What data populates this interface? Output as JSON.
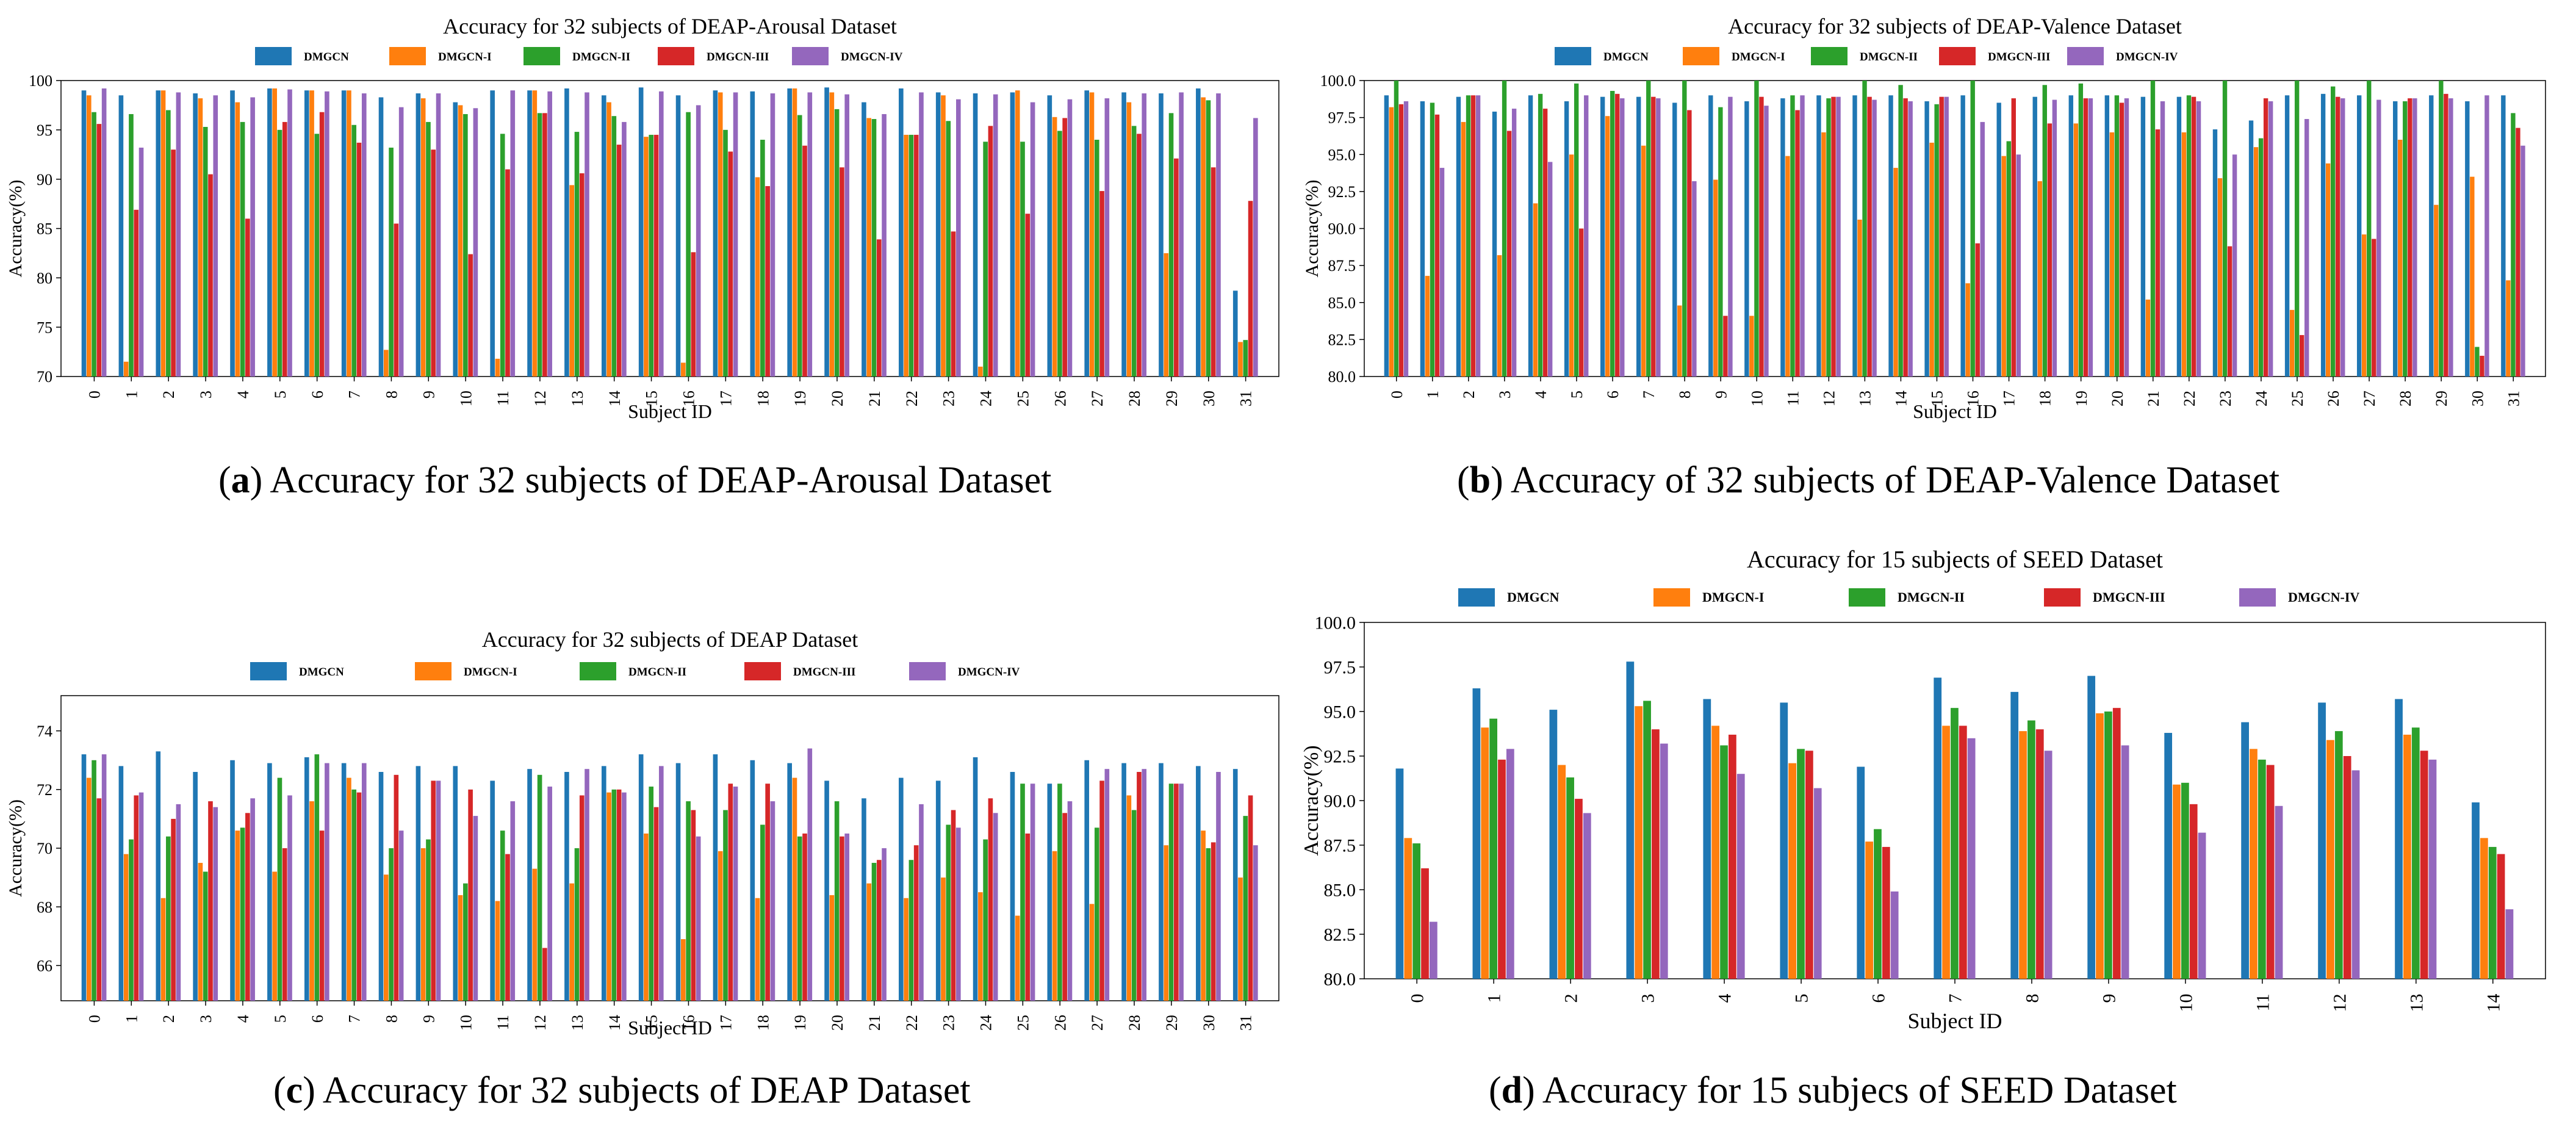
{
  "colors": {
    "DMGCN": "#1f77b4",
    "DMGCN-I": "#ff7f0e",
    "DMGCN-II": "#2ca02c",
    "DMGCN-III": "#d62728",
    "DMGCN-IV": "#9467bd"
  },
  "captions": [
    {
      "label": "a",
      "text": "Accuracy for 32 subjects of DEAP-Arousal Dataset"
    },
    {
      "label": "b",
      "text": "Accuracy of 32 subjects of DEAP-Valence Dataset"
    },
    {
      "label": "c",
      "text": "Accuracy for 32 subjects of DEAP Dataset"
    },
    {
      "label": "d",
      "text": "Accuracy for 15 subjecs of SEED Dataset"
    }
  ],
  "chart_data": [
    {
      "type": "bar",
      "title": "Accuracy for 32 subjects of DEAP-Arousal Dataset",
      "xlabel": "Subject ID",
      "ylabel": "Accuracy(%)",
      "ylim": [
        70,
        100
      ],
      "yticks": [
        70,
        75,
        80,
        85,
        90,
        95,
        100
      ],
      "ytick_labels": [
        "70",
        "75",
        "80",
        "85",
        "90",
        "95",
        "100"
      ],
      "categories": [
        "0",
        "1",
        "2",
        "3",
        "4",
        "5",
        "6",
        "7",
        "8",
        "9",
        "10",
        "11",
        "12",
        "13",
        "14",
        "15",
        "16",
        "17",
        "18",
        "19",
        "20",
        "21",
        "22",
        "23",
        "24",
        "25",
        "26",
        "27",
        "28",
        "29",
        "30",
        "31"
      ],
      "series": [
        {
          "name": "DMGCN",
          "values": [
            99,
            98.5,
            99,
            98.7,
            99,
            99.2,
            99,
            99,
            98.3,
            98.7,
            97.8,
            99,
            99,
            99.2,
            98.5,
            99.3,
            98.5,
            99,
            98.9,
            99.2,
            99.3,
            97.8,
            99.2,
            98.8,
            98.7,
            98.8,
            98.5,
            99,
            98.8,
            98.7,
            99.2,
            78.7
          ]
        },
        {
          "name": "DMGCN-I",
          "values": [
            98.5,
            71.5,
            99,
            98.2,
            97.8,
            99.2,
            99,
            99,
            72.7,
            98.2,
            97.5,
            71.8,
            99,
            89.4,
            97.8,
            94.3,
            71.4,
            98.8,
            90.2,
            99.2,
            98.8,
            96.2,
            94.5,
            98.5,
            71,
            99,
            96.3,
            98.8,
            97.8,
            82.5,
            98.3,
            73.5
          ]
        },
        {
          "name": "DMGCN-II",
          "values": [
            96.8,
            96.6,
            97,
            95.3,
            95.8,
            95,
            94.6,
            95.5,
            93.2,
            95.8,
            96.6,
            94.6,
            96.7,
            94.8,
            96.4,
            94.5,
            96.8,
            95,
            94,
            96.5,
            97.1,
            96.1,
            94.5,
            95.9,
            93.8,
            93.8,
            94.9,
            94,
            95.4,
            96.7,
            98,
            73.7
          ]
        },
        {
          "name": "DMGCN-III",
          "values": [
            95.6,
            86.9,
            93,
            90.5,
            86,
            95.8,
            96.8,
            93.7,
            85.5,
            93,
            82.4,
            91,
            96.7,
            90.6,
            93.5,
            94.5,
            82.6,
            92.8,
            89.3,
            93.4,
            91.2,
            83.9,
            94.5,
            84.7,
            95.4,
            86.5,
            96.2,
            88.8,
            94.6,
            92.1,
            91.2,
            87.8
          ]
        },
        {
          "name": "DMGCN-IV",
          "values": [
            99.2,
            93.2,
            98.8,
            98.5,
            98.3,
            99.1,
            98.9,
            98.7,
            97.3,
            98.7,
            97.2,
            99,
            98.9,
            98.8,
            95.8,
            98.9,
            97.5,
            98.8,
            98.7,
            98.8,
            98.6,
            96.6,
            98.8,
            98.1,
            98.6,
            97.8,
            98.1,
            98.2,
            98.7,
            98.8,
            98.7,
            96.2
          ]
        }
      ]
    },
    {
      "type": "bar",
      "title": "Accuracy for 32 subjects of DEAP-Valence Dataset",
      "xlabel": "Subject ID",
      "ylabel": "Accuracy(%)",
      "ylim": [
        80,
        100
      ],
      "yticks": [
        80,
        82.5,
        85,
        87.5,
        90,
        92.5,
        95,
        97.5,
        100
      ],
      "ytick_labels": [
        "80.0",
        "82.5",
        "85.0",
        "87.5",
        "90.0",
        "92.5",
        "95.0",
        "97.5",
        "100.0"
      ],
      "categories": [
        "0",
        "1",
        "2",
        "3",
        "4",
        "5",
        "6",
        "7",
        "8",
        "9",
        "10",
        "11",
        "12",
        "13",
        "14",
        "15",
        "16",
        "17",
        "18",
        "19",
        "20",
        "21",
        "22",
        "23",
        "24",
        "25",
        "26",
        "27",
        "28",
        "29",
        "30",
        "31"
      ],
      "series": [
        {
          "name": "DMGCN",
          "values": [
            99,
            98.6,
            98.9,
            97.9,
            99,
            98.6,
            98.9,
            98.9,
            98.5,
            99,
            98.6,
            98.8,
            99,
            99,
            99,
            98.6,
            99,
            98.5,
            98.9,
            99,
            99,
            98.9,
            98.9,
            96.7,
            97.3,
            99,
            99.1,
            99,
            98.6,
            99,
            98.6,
            99
          ]
        },
        {
          "name": "DMGCN-I",
          "values": [
            98.2,
            86.8,
            97.2,
            88.2,
            91.7,
            95,
            97.6,
            95.6,
            84.8,
            93.3,
            84.1,
            94.9,
            96.5,
            90.6,
            94.1,
            95.8,
            86.3,
            94.9,
            93.2,
            97.1,
            96.5,
            85.2,
            96.5,
            93.4,
            95.5,
            84.5,
            94.4,
            89.6,
            96,
            91.6,
            93.5,
            86.5
          ]
        },
        {
          "name": "DMGCN-II",
          "values": [
            100,
            98.5,
            99,
            100,
            99.1,
            99.8,
            99.3,
            100,
            100,
            98.2,
            100,
            99,
            98.8,
            100,
            99.7,
            98.4,
            100,
            95.9,
            99.7,
            99.8,
            99,
            100,
            99,
            100,
            96.1,
            100,
            99.6,
            100,
            98.6,
            100,
            82,
            97.8
          ]
        },
        {
          "name": "DMGCN-III",
          "values": [
            98.4,
            97.7,
            99,
            96.6,
            98.1,
            90,
            99.1,
            98.9,
            98,
            84.1,
            98.9,
            98,
            98.9,
            98.9,
            98.8,
            98.9,
            89,
            98.8,
            97.1,
            98.8,
            98.5,
            96.7,
            98.9,
            88.8,
            98.8,
            82.8,
            98.9,
            89.3,
            98.8,
            99.1,
            81.4,
            96.8
          ]
        },
        {
          "name": "DMGCN-IV",
          "values": [
            98.6,
            94.1,
            99,
            98.1,
            94.5,
            99,
            98.8,
            98.8,
            93.2,
            98.9,
            98.3,
            99,
            98.9,
            98.7,
            98.6,
            98.9,
            97.2,
            95,
            98.7,
            98.8,
            98.8,
            98.6,
            98.6,
            95,
            98.6,
            97.4,
            98.8,
            98.7,
            98.8,
            98.8,
            99,
            95.6
          ]
        }
      ]
    },
    {
      "type": "bar",
      "title": "Accuracy for 32 subjects of DEAP Dataset",
      "xlabel": "Subject ID",
      "ylabel": "Accuracy(%)",
      "ylim": [
        64.8,
        75.2
      ],
      "yticks": [
        66,
        68,
        70,
        72,
        74
      ],
      "ytick_labels": [
        "66",
        "68",
        "70",
        "72",
        "74"
      ],
      "categories": [
        "0",
        "1",
        "2",
        "3",
        "4",
        "5",
        "6",
        "7",
        "8",
        "9",
        "10",
        "11",
        "12",
        "13",
        "14",
        "15",
        "16",
        "17",
        "18",
        "19",
        "20",
        "21",
        "22",
        "23",
        "24",
        "25",
        "26",
        "27",
        "28",
        "29",
        "30",
        "31"
      ],
      "series": [
        {
          "name": "DMGCN",
          "values": [
            73.2,
            72.8,
            73.3,
            72.6,
            73,
            72.9,
            73.1,
            72.9,
            72.6,
            72.8,
            72.8,
            72.3,
            72.7,
            72.6,
            72.8,
            73.2,
            72.9,
            73.2,
            73,
            72.9,
            72.3,
            71.7,
            72.4,
            72.3,
            73.1,
            72.6,
            72.2,
            73,
            72.9,
            72.9,
            72.8,
            72.7
          ]
        },
        {
          "name": "DMGCN-I",
          "values": [
            72.4,
            69.8,
            68.3,
            69.5,
            70.6,
            69.2,
            71.6,
            72.4,
            69.1,
            70,
            68.4,
            68.2,
            69.3,
            68.8,
            71.9,
            70.5,
            66.9,
            69.9,
            68.3,
            72.4,
            68.4,
            68.8,
            68.3,
            69,
            68.5,
            67.7,
            69.9,
            68.1,
            71.8,
            70.1,
            70.6,
            69
          ]
        },
        {
          "name": "DMGCN-II",
          "values": [
            73,
            70.3,
            70.4,
            69.2,
            70.7,
            72.4,
            73.2,
            72,
            70,
            70.3,
            68.8,
            70.6,
            72.5,
            70,
            72,
            72.1,
            71.6,
            71.3,
            70.8,
            70.4,
            71.6,
            69.5,
            69.6,
            70.8,
            70.3,
            72.2,
            72.2,
            70.7,
            71.3,
            72.2,
            70,
            71.1
          ]
        },
        {
          "name": "DMGCN-III",
          "values": [
            71.7,
            71.8,
            71,
            71.6,
            71.2,
            70,
            70.6,
            71.9,
            72.5,
            72.3,
            72,
            69.8,
            66.6,
            71.8,
            72,
            71.4,
            71.3,
            72.2,
            72.2,
            70.5,
            70.4,
            69.6,
            70.1,
            71.3,
            71.7,
            70.5,
            71.2,
            72.3,
            72.6,
            72.2,
            70.2,
            71.8
          ]
        },
        {
          "name": "DMGCN-IV",
          "values": [
            73.2,
            71.9,
            71.5,
            71.4,
            71.7,
            71.8,
            72.9,
            72.9,
            70.6,
            72.3,
            71.1,
            71.6,
            72.1,
            72.7,
            71.9,
            72.8,
            70.4,
            72.1,
            71.6,
            73.4,
            70.5,
            70,
            71.5,
            70.7,
            71.2,
            72.2,
            71.6,
            72.7,
            72.7,
            72.2,
            72.6,
            70.1
          ]
        }
      ]
    },
    {
      "type": "bar",
      "title": "Accuracy for 15 subjects of SEED Dataset",
      "xlabel": "Subject ID",
      "ylabel": "Accuracy(%)",
      "ylim": [
        80,
        100
      ],
      "yticks": [
        80,
        82.5,
        85,
        87.5,
        90,
        92.5,
        95,
        97.5,
        100
      ],
      "ytick_labels": [
        "80.0",
        "82.5",
        "85.0",
        "87.5",
        "90.0",
        "92.5",
        "95.0",
        "97.5",
        "100.0"
      ],
      "categories": [
        "0",
        "1",
        "2",
        "3",
        "4",
        "5",
        "6",
        "7",
        "8",
        "9",
        "10",
        "11",
        "12",
        "13",
        "14"
      ],
      "series": [
        {
          "name": "DMGCN",
          "values": [
            91.8,
            96.3,
            95.1,
            97.8,
            95.7,
            95.5,
            91.9,
            96.9,
            96.1,
            97,
            93.8,
            94.4,
            95.5,
            95.7,
            89.9
          ]
        },
        {
          "name": "DMGCN-I",
          "values": [
            87.9,
            94.1,
            92,
            95.3,
            94.2,
            92.1,
            87.7,
            94.2,
            93.9,
            94.9,
            90.9,
            92.9,
            93.4,
            93.7,
            87.9
          ]
        },
        {
          "name": "DMGCN-II",
          "values": [
            87.6,
            94.6,
            91.3,
            95.6,
            93.1,
            92.9,
            88.4,
            95.2,
            94.5,
            95,
            91,
            92.3,
            93.9,
            94.1,
            87.4
          ]
        },
        {
          "name": "DMGCN-III",
          "values": [
            86.2,
            92.3,
            90.1,
            94,
            93.7,
            92.8,
            87.4,
            94.2,
            94,
            95.2,
            89.8,
            92,
            92.5,
            92.8,
            87
          ]
        },
        {
          "name": "DMGCN-IV",
          "values": [
            83.2,
            92.9,
            89.3,
            93.2,
            91.5,
            90.7,
            84.9,
            93.5,
            92.8,
            93.1,
            88.2,
            89.7,
            91.7,
            92.3,
            83.9
          ]
        }
      ]
    }
  ]
}
